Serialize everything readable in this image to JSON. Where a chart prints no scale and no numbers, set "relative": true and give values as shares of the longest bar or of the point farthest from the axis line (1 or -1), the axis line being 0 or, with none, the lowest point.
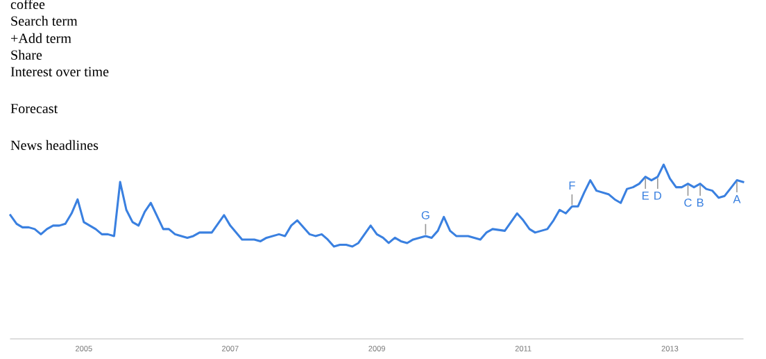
{
  "chart_data": {
    "type": "line",
    "relative": true,
    "annotations": [
      "coffee",
      "Search term",
      "+Add term",
      "Share",
      "Interest over time",
      "Forecast",
      "News headlines",
      {
        "text": "G",
        "x": "2009-09",
        "y": 0.59
      },
      {
        "text": "F",
        "x": "2011-09",
        "y": 0.76
      },
      {
        "text": "E",
        "x": "2012-09",
        "y": 0.93
      },
      {
        "text": "D",
        "x": "2012-11",
        "y": 0.93
      },
      {
        "text": "C",
        "x": "2013-04",
        "y": 0.89
      },
      {
        "text": "B",
        "x": "2013-06",
        "y": 0.89
      },
      {
        "text": "A",
        "x": "2013-12",
        "y": 0.91
      }
    ],
    "xlim": [
      "2004-01",
      "2014-01"
    ],
    "xticks": [
      {
        "value": "2005-01",
        "label": "2005"
      },
      {
        "value": "2007-01",
        "label": "2007"
      },
      {
        "value": "2009-01",
        "label": "2009"
      },
      {
        "value": "2011-01",
        "label": "2011"
      },
      {
        "value": "2013-01",
        "label": "2013"
      }
    ],
    "series": [
      {
        "color": "#3a80e0",
        "x": [
          "2004-01",
          "2004-02",
          "2004-03",
          "2004-04",
          "2004-05",
          "2004-06",
          "2004-07",
          "2004-08",
          "2004-09",
          "2004-10",
          "2004-11",
          "2004-12",
          "2005-01",
          "2005-03",
          "2005-04",
          "2005-05",
          "2005-06",
          "2005-07",
          "2005-08",
          "2005-09",
          "2005-10",
          "2005-11",
          "2005-12",
          "2006-02",
          "2006-03",
          "2006-04",
          "2006-06",
          "2006-07",
          "2006-08",
          "2006-10",
          "2006-12",
          "2007-01",
          "2007-03",
          "2007-05",
          "2007-06",
          "2007-07",
          "2007-09",
          "2007-10",
          "2007-11",
          "2007-12",
          "2008-02",
          "2008-03",
          "2008-04",
          "2008-05",
          "2008-06",
          "2008-07",
          "2008-08",
          "2008-09",
          "2008-10",
          "2008-12",
          "2009-01",
          "2009-02",
          "2009-03",
          "2009-04",
          "2009-05",
          "2009-06",
          "2009-07",
          "2009-08",
          "2009-09",
          "2009-10",
          "2009-11",
          "2009-12",
          "2010-01",
          "2010-02",
          "2010-04",
          "2010-06",
          "2010-07",
          "2010-08",
          "2010-10",
          "2010-12",
          "2011-01",
          "2011-02",
          "2011-03",
          "2011-05",
          "2011-06",
          "2011-07",
          "2011-08",
          "2011-09",
          "2011-10",
          "2011-11",
          "2011-12",
          "2012-01",
          "2012-03",
          "2012-04",
          "2012-05",
          "2012-06",
          "2012-07",
          "2012-08",
          "2012-09",
          "2012-10",
          "2012-11",
          "2012-12",
          "2013-01",
          "2013-02",
          "2013-03",
          "2013-04",
          "2013-05",
          "2013-06",
          "2013-07",
          "2013-08",
          "2013-09",
          "2013-10",
          "2013-12",
          "2014-01"
        ],
        "values": [
          0.71,
          0.66,
          0.64,
          0.64,
          0.63,
          0.6,
          0.63,
          0.65,
          0.65,
          0.66,
          0.72,
          0.8,
          0.67,
          0.63,
          0.6,
          0.6,
          0.59,
          0.9,
          0.74,
          0.67,
          0.65,
          0.73,
          0.78,
          0.63,
          0.63,
          0.6,
          0.58,
          0.59,
          0.61,
          0.61,
          0.71,
          0.65,
          0.57,
          0.57,
          0.56,
          0.58,
          0.6,
          0.59,
          0.65,
          0.68,
          0.6,
          0.59,
          0.6,
          0.57,
          0.53,
          0.54,
          0.54,
          0.53,
          0.55,
          0.65,
          0.6,
          0.58,
          0.55,
          0.58,
          0.56,
          0.55,
          0.57,
          0.58,
          0.59,
          0.58,
          0.62,
          0.7,
          0.62,
          0.59,
          0.59,
          0.57,
          0.61,
          0.63,
          0.62,
          0.72,
          0.68,
          0.63,
          0.61,
          0.63,
          0.68,
          0.74,
          0.72,
          0.76,
          0.76,
          0.84,
          0.91,
          0.85,
          0.83,
          0.8,
          0.78,
          0.86,
          0.87,
          0.89,
          0.93,
          0.91,
          0.93,
          1.0,
          0.92,
          0.87,
          0.87,
          0.89,
          0.87,
          0.89,
          0.86,
          0.85,
          0.81,
          0.82,
          0.91,
          0.9
        ]
      }
    ]
  }
}
